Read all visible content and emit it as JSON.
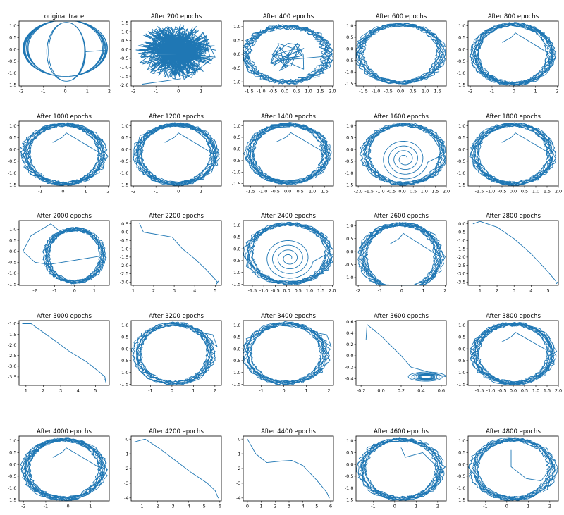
{
  "figure": {
    "series_color": "#1f77b4"
  },
  "chart_data": [
    {
      "type": "line",
      "title": "original trace",
      "shape": "double-loop",
      "xlim": [
        -2.1,
        2.0
      ],
      "ylim": [
        -1.55,
        1.2
      ],
      "xticks": [
        "-2",
        "-1",
        "0",
        "1",
        "2"
      ],
      "xtick_values": [
        -2,
        -1,
        0,
        1,
        2
      ],
      "yticks": [
        "1.0",
        "0.5",
        "0.0",
        "-0.5",
        "-1.0",
        "-1.5"
      ],
      "ytick_values": [
        1.0,
        0.5,
        0.0,
        -0.5,
        -1.0,
        -1.5
      ]
    },
    {
      "type": "line",
      "title": "After 200 epochs",
      "shape": "noise",
      "xlim": [
        -2.1,
        1.9
      ],
      "ylim": [
        -2.05,
        1.6
      ],
      "xticks": [
        "-2",
        "-1",
        "0",
        "1"
      ],
      "xtick_values": [
        -2,
        -1,
        0,
        1
      ],
      "yticks": [
        "1.5",
        "1.0",
        "0.5",
        "0.0",
        "-0.5",
        "-1.0",
        "-1.5",
        "-2.0"
      ],
      "ytick_values": [
        1.5,
        1.0,
        0.5,
        0.0,
        -0.5,
        -1.0,
        -1.5,
        -2.0
      ]
    },
    {
      "type": "line",
      "title": "After 400 epochs",
      "shape": "ring-inner",
      "xlim": [
        -1.75,
        2.05
      ],
      "ylim": [
        -1.15,
        1.2
      ],
      "xticks": [
        "-1.5",
        "-1.0",
        "-0.5",
        "0.0",
        "0.5",
        "1.0",
        "1.5",
        "2.0"
      ],
      "xtick_values": [
        -1.5,
        -1.0,
        -0.5,
        0.0,
        0.5,
        1.0,
        1.5,
        2.0
      ],
      "yticks": [
        "1.0",
        "0.5",
        "0.0",
        "-0.5",
        "-1.0"
      ],
      "ytick_values": [
        1.0,
        0.5,
        0.0,
        -0.5,
        -1.0
      ]
    },
    {
      "type": "line",
      "title": "After 600 epochs",
      "shape": "ring",
      "xlim": [
        -1.8,
        1.85
      ],
      "ylim": [
        -1.6,
        1.2
      ],
      "xticks": [
        "-1.5",
        "-1.0",
        "-0.5",
        "0.0",
        "0.5",
        "1.0",
        "1.5"
      ],
      "xtick_values": [
        -1.5,
        -1.0,
        -0.5,
        0.0,
        0.5,
        1.0,
        1.5
      ],
      "yticks": [
        "1.0",
        "0.5",
        "0.0",
        "-0.5",
        "-1.0",
        "-1.5"
      ],
      "ytick_values": [
        1.0,
        0.5,
        0.0,
        -0.5,
        -1.0,
        -1.5
      ]
    },
    {
      "type": "line",
      "title": "After 800 epochs",
      "shape": "ring-tail",
      "xlim": [
        -2.1,
        2.05
      ],
      "ylim": [
        -1.55,
        1.2
      ],
      "xticks": [
        "-2",
        "-1",
        "0",
        "1",
        "2"
      ],
      "xtick_values": [
        -2,
        -1,
        0,
        1,
        2
      ],
      "yticks": [
        "1.0",
        "0.5",
        "0.0",
        "-0.5",
        "-1.0",
        "-1.5"
      ],
      "ytick_values": [
        1.0,
        0.5,
        0.0,
        -0.5,
        -1.0,
        -1.5
      ]
    },
    {
      "type": "line",
      "title": "After 1000 epochs",
      "shape": "ring-tail",
      "xlim": [
        -1.95,
        2.05
      ],
      "ylim": [
        -1.55,
        1.2
      ],
      "xticks": [
        "-1",
        "0",
        "1",
        "2"
      ],
      "xtick_values": [
        -1,
        0,
        1,
        2
      ],
      "yticks": [
        "1.0",
        "0.5",
        "0.0",
        "-0.5",
        "-1.0",
        "-1.5"
      ],
      "ytick_values": [
        1.0,
        0.5,
        0.0,
        -0.5,
        -1.0,
        -1.5
      ]
    },
    {
      "type": "line",
      "title": "After 1200 epochs",
      "shape": "ring-tail",
      "xlim": [
        -2.1,
        1.9
      ],
      "ylim": [
        -1.55,
        1.2
      ],
      "xticks": [
        "-2",
        "-1",
        "0",
        "1"
      ],
      "xtick_values": [
        -2,
        -1,
        0,
        1
      ],
      "yticks": [
        "1.0",
        "0.5",
        "0.0",
        "-0.5",
        "-1.0",
        "-1.5"
      ],
      "ytick_values": [
        1.0,
        0.5,
        0.0,
        -0.5,
        -1.0,
        -1.5
      ]
    },
    {
      "type": "line",
      "title": "After 1400 epochs",
      "shape": "ring-tail",
      "xlim": [
        -1.8,
        1.85
      ],
      "ylim": [
        -1.6,
        1.2
      ],
      "xticks": [
        "-1.5",
        "-1.0",
        "-0.5",
        "0.0",
        "0.5",
        "1.0",
        "1.5"
      ],
      "xtick_values": [
        -1.5,
        -1.0,
        -0.5,
        0.0,
        0.5,
        1.0,
        1.5
      ],
      "yticks": [
        "1.0",
        "0.5",
        "0.0",
        "-0.5",
        "-1.0",
        "-1.5"
      ],
      "ytick_values": [
        1.0,
        0.5,
        0.0,
        -0.5,
        -1.0,
        -1.5
      ]
    },
    {
      "type": "line",
      "title": "After 1600 epochs",
      "shape": "ring-spiral",
      "xlim": [
        -2.1,
        2.0
      ],
      "ylim": [
        -1.55,
        1.2
      ],
      "xticks": [
        "-2.0",
        "-1.5",
        "-1.0",
        "-0.5",
        "0.0",
        "0.5",
        "1.0",
        "1.5",
        "2.0"
      ],
      "xtick_values": [
        -2.0,
        -1.5,
        -1.0,
        -0.5,
        0.0,
        0.5,
        1.0,
        1.5,
        2.0
      ],
      "yticks": [
        "1.0",
        "0.5",
        "0.0",
        "-0.5",
        "-1.0",
        "-1.5"
      ],
      "ytick_values": [
        1.0,
        0.5,
        0.0,
        -0.5,
        -1.0,
        -1.5
      ]
    },
    {
      "type": "line",
      "title": "After 1800 epochs",
      "shape": "ring-tail",
      "xlim": [
        -2.0,
        2.0
      ],
      "ylim": [
        -1.55,
        1.2
      ],
      "xticks": [
        "-1.5",
        "-1.0",
        "-0.5",
        "0.0",
        "0.5",
        "1.0",
        "1.5",
        "2.0"
      ],
      "xtick_values": [
        -1.5,
        -1.0,
        -0.5,
        0.0,
        0.5,
        1.0,
        1.5,
        2.0
      ],
      "yticks": [
        "1.0",
        "0.5",
        "0.0",
        "-0.5",
        "-1.0",
        "-1.5"
      ],
      "ytick_values": [
        1.0,
        0.5,
        0.0,
        -0.5,
        -1.0,
        -1.5
      ]
    },
    {
      "type": "line",
      "title": "After 2000 epochs",
      "shape": "ring-loop",
      "xlim": [
        -2.8,
        1.75
      ],
      "ylim": [
        -1.55,
        1.4
      ],
      "xticks": [
        "-2",
        "-1",
        "0",
        "1"
      ],
      "xtick_values": [
        -2,
        -1,
        0,
        1
      ],
      "yticks": [
        "1.0",
        "0.5",
        "0.0",
        "-0.5",
        "-1.0",
        "-1.5"
      ],
      "ytick_values": [
        1.0,
        0.5,
        0.0,
        -0.5,
        -1.0,
        -1.5
      ]
    },
    {
      "type": "line",
      "title": "After 2200 epochs",
      "shape": "diverge-a",
      "xlim": [
        0.9,
        5.3
      ],
      "ylim": [
        -3.2,
        0.7
      ],
      "xticks": [
        "1",
        "2",
        "3",
        "4",
        "5"
      ],
      "xtick_values": [
        1,
        2,
        3,
        4,
        5
      ],
      "yticks": [
        "0.5",
        "0.0",
        "-0.5",
        "-1.0",
        "-1.5",
        "-2.0",
        "-2.5",
        "-3.0"
      ],
      "ytick_values": [
        0.5,
        0.0,
        -0.5,
        -1.0,
        -1.5,
        -2.0,
        -2.5,
        -3.0
      ]
    },
    {
      "type": "line",
      "title": "After 2400 epochs",
      "shape": "ring-spiral",
      "xlim": [
        -1.9,
        2.05
      ],
      "ylim": [
        -1.55,
        1.2
      ],
      "xticks": [
        "-1.5",
        "-1.0",
        "-0.5",
        "0.0",
        "0.5",
        "1.0",
        "1.5",
        "2.0"
      ],
      "xtick_values": [
        -1.5,
        -1.0,
        -0.5,
        0.0,
        0.5,
        1.0,
        1.5,
        2.0
      ],
      "yticks": [
        "1.0",
        "0.5",
        "0.0",
        "-0.5",
        "-1.0",
        "-1.5"
      ],
      "ytick_values": [
        1.0,
        0.5,
        0.0,
        -0.5,
        -1.0,
        -1.5
      ]
    },
    {
      "type": "line",
      "title": "After 2600 epochs",
      "shape": "ring-tail",
      "xlim": [
        -2.1,
        2.05
      ],
      "ylim": [
        -1.3,
        1.2
      ],
      "xticks": [
        "-2",
        "-1",
        "0",
        "1",
        "2"
      ],
      "xtick_values": [
        -2,
        -1,
        0,
        1,
        2
      ],
      "yticks": [
        "1.0",
        "0.5",
        "0.0",
        "-0.5",
        "-1.0"
      ],
      "ytick_values": [
        1.0,
        0.5,
        0.0,
        -0.5,
        -1.0
      ]
    },
    {
      "type": "line",
      "title": "After 2800 epochs",
      "shape": "diverge-b",
      "xlim": [
        0.3,
        5.6
      ],
      "ylim": [
        -3.7,
        0.2
      ],
      "xticks": [
        "1",
        "2",
        "3",
        "4",
        "5"
      ],
      "xtick_values": [
        1,
        2,
        3,
        4,
        5
      ],
      "yticks": [
        "0.0",
        "-0.5",
        "-1.0",
        "-1.5",
        "-2.0",
        "-2.5",
        "-3.0",
        "-3.5"
      ],
      "ytick_values": [
        0.0,
        -0.5,
        -1.0,
        -1.5,
        -2.0,
        -2.5,
        -3.0,
        -3.5
      ]
    },
    {
      "type": "line",
      "title": "After 3000 epochs",
      "shape": "diverge-c",
      "xlim": [
        0.6,
        5.8
      ],
      "ylim": [
        -3.9,
        -0.85
      ],
      "xticks": [
        "1",
        "2",
        "3",
        "4",
        "5"
      ],
      "xtick_values": [
        1,
        2,
        3,
        4,
        5
      ],
      "yticks": [
        "-1.0",
        "-1.5",
        "-2.0",
        "-2.5",
        "-3.0",
        "-3.5"
      ],
      "ytick_values": [
        -1.0,
        -1.5,
        -2.0,
        -2.5,
        -3.0,
        -3.5
      ]
    },
    {
      "type": "line",
      "title": "After 3200 epochs",
      "shape": "ring-loop-right",
      "xlim": [
        -1.9,
        2.3
      ],
      "ylim": [
        -1.55,
        1.2
      ],
      "xticks": [
        "-1",
        "0",
        "1",
        "2"
      ],
      "xtick_values": [
        -1,
        0,
        1,
        2
      ],
      "yticks": [
        "1.0",
        "0.5",
        "0.0",
        "-0.5",
        "-1.0",
        "-1.5"
      ],
      "ytick_values": [
        1.0,
        0.5,
        0.0,
        -0.5,
        -1.0,
        -1.5
      ]
    },
    {
      "type": "line",
      "title": "After 3400 epochs",
      "shape": "ring-loop-right",
      "xlim": [
        -1.8,
        2.2
      ],
      "ylim": [
        -1.55,
        1.2
      ],
      "xticks": [
        "-1",
        "0",
        "1",
        "2"
      ],
      "xtick_values": [
        -1,
        0,
        1,
        2
      ],
      "yticks": [
        "1.0",
        "0.5",
        "0.0",
        "-0.5",
        "-1.0",
        "-1.5"
      ],
      "ytick_values": [
        1.0,
        0.5,
        0.0,
        -0.5,
        -1.0,
        -1.5
      ]
    },
    {
      "type": "line",
      "title": "After 3600 epochs",
      "shape": "collapse",
      "xlim": [
        -0.25,
        0.65
      ],
      "ylim": [
        -0.52,
        0.62
      ],
      "xticks": [
        "-0.2",
        "0.0",
        "0.2",
        "0.4",
        "0.6"
      ],
      "xtick_values": [
        -0.2,
        0.0,
        0.2,
        0.4,
        0.6
      ],
      "yticks": [
        "0.6",
        "0.4",
        "0.2",
        "0.0",
        "-0.2",
        "-0.4"
      ],
      "ytick_values": [
        0.6,
        0.4,
        0.2,
        0.0,
        -0.2,
        -0.4
      ]
    },
    {
      "type": "line",
      "title": "After 3800 epochs",
      "shape": "ring-tail",
      "xlim": [
        -2.0,
        2.0
      ],
      "ylim": [
        -1.55,
        1.2
      ],
      "xticks": [
        "-1.5",
        "-1.0",
        "-0.5",
        "0.0",
        "0.5",
        "1.0",
        "1.5",
        "2.0"
      ],
      "xtick_values": [
        -1.5,
        -1.0,
        -0.5,
        0.0,
        0.5,
        1.0,
        1.5,
        2.0
      ],
      "yticks": [
        "1.0",
        "0.5",
        "0.0",
        "-0.5",
        "-1.0",
        "-1.5"
      ],
      "ytick_values": [
        1.0,
        0.5,
        0.0,
        -0.5,
        -1.0,
        -1.5
      ]
    },
    {
      "type": "line",
      "title": "After 4000 epochs",
      "shape": "ring-tail",
      "xlim": [
        -2.2,
        1.85
      ],
      "ylim": [
        -1.55,
        1.2
      ],
      "xticks": [
        "-2",
        "-1",
        "0",
        "1"
      ],
      "xtick_values": [
        -2,
        -1,
        0,
        1
      ],
      "yticks": [
        "1.0",
        "0.5",
        "0.0",
        "-0.5",
        "-1.0",
        "-1.5"
      ],
      "ytick_values": [
        1.0,
        0.5,
        0.0,
        -0.5,
        -1.0,
        -1.5
      ]
    },
    {
      "type": "line",
      "title": "After 4200 epochs",
      "shape": "diverge-d",
      "xlim": [
        0.3,
        6.1
      ],
      "ylim": [
        -4.2,
        0.2
      ],
      "xticks": [
        "1",
        "2",
        "3",
        "4",
        "5",
        "6"
      ],
      "xtick_values": [
        1,
        2,
        3,
        4,
        5,
        6
      ],
      "yticks": [
        "0",
        "-1",
        "-2",
        "-3",
        "-4"
      ],
      "ytick_values": [
        0,
        -1,
        -2,
        -3,
        -4
      ]
    },
    {
      "type": "line",
      "title": "After 4400 epochs",
      "shape": "diverge-e",
      "xlim": [
        -0.3,
        6.2
      ],
      "ylim": [
        -4.2,
        0.2
      ],
      "xticks": [
        "0",
        "1",
        "2",
        "3",
        "4",
        "5",
        "6"
      ],
      "xtick_values": [
        0,
        1,
        2,
        3,
        4,
        5,
        6
      ],
      "yticks": [
        "0",
        "-1",
        "-2",
        "-3",
        "-4"
      ],
      "ytick_values": [
        0,
        -1,
        -2,
        -3,
        -4
      ]
    },
    {
      "type": "line",
      "title": "After 4600 epochs",
      "shape": "ring-tail-right",
      "xlim": [
        -1.8,
        2.4
      ],
      "ylim": [
        -1.55,
        1.2
      ],
      "xticks": [
        "-1",
        "0",
        "1",
        "2"
      ],
      "xtick_values": [
        -1,
        0,
        1,
        2
      ],
      "yticks": [
        "1.0",
        "0.5",
        "0.0",
        "-0.5",
        "-1.0",
        "-1.5"
      ],
      "ytick_values": [
        1.0,
        0.5,
        0.0,
        -0.5,
        -1.0,
        -1.5
      ]
    },
    {
      "type": "line",
      "title": "After 4800 epochs",
      "shape": "ring-tail-down",
      "xlim": [
        -1.8,
        2.4
      ],
      "ylim": [
        -1.55,
        1.2
      ],
      "xticks": [
        "-1",
        "0",
        "1",
        "2"
      ],
      "xtick_values": [
        -1,
        0,
        1,
        2
      ],
      "yticks": [
        "1.0",
        "0.5",
        "0.0",
        "-0.5",
        "-1.0",
        "-1.5"
      ],
      "ytick_values": [
        1.0,
        0.5,
        0.0,
        -0.5,
        -1.0,
        -1.5
      ]
    }
  ]
}
